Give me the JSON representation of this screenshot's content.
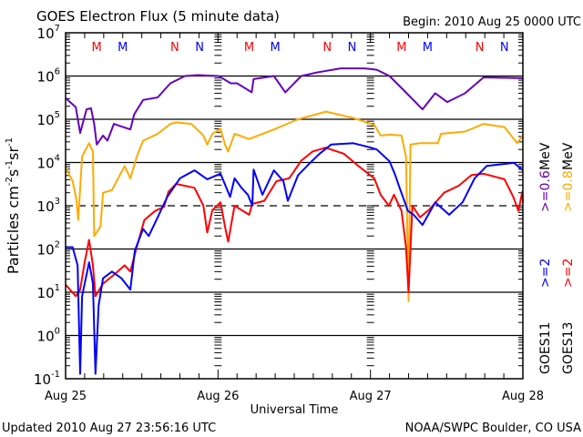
{
  "chart_data": {
    "type": "line",
    "title": "GOES Electron Flux (5 minute data)",
    "begin_label": "Begin: 2010 Aug 25 0000 UTC",
    "xlabel": "Universal Time",
    "ylabel": "Particles cm",
    "ylabel_parts": [
      "Particles cm",
      "-2",
      "s",
      "-1",
      "sr",
      "-1"
    ],
    "x_unit": "hours since 2010 Aug 25 0000 UTC",
    "xlim": [
      0,
      72
    ],
    "x_ticks": [
      {
        "h": 0,
        "label": "Aug 25"
      },
      {
        "h": 24,
        "label": "Aug 26"
      },
      {
        "h": 48,
        "label": "Aug 27"
      },
      {
        "h": 72,
        "label": "Aug 28"
      }
    ],
    "yscale": "log",
    "ylim": [
      0.1,
      10000000
    ],
    "y_ticks": [
      {
        "exp": "7"
      },
      {
        "exp": "6"
      },
      {
        "exp": "5"
      },
      {
        "exp": "4"
      },
      {
        "exp": "3"
      },
      {
        "exp": "2"
      },
      {
        "exp": "1"
      },
      {
        "exp": "0"
      },
      {
        "exp": "-1"
      }
    ],
    "y_tick_base": "10",
    "threshold_line": 1000,
    "markers": [
      {
        "label": "M",
        "color": "#ff0000",
        "h": [
          4.9,
          28.9,
          52.9
        ]
      },
      {
        "label": "M",
        "color": "#0000ff",
        "h": [
          9.0,
          33.0,
          57.0
        ]
      },
      {
        "label": "N",
        "color": "#ff0000",
        "h": [
          17.2,
          41.2,
          65.2
        ]
      },
      {
        "label": "N",
        "color": "#0000ff",
        "h": [
          21.1,
          45.1,
          69.1
        ]
      }
    ],
    "legend": [
      {
        "satellite": "GOES11",
        "low": ">=2",
        "low_color": "#0000ff",
        "high": ">=0.6",
        "high_color": "#6600bb",
        "unit": "MeV"
      },
      {
        "satellite": "GOES13",
        "low": ">=2",
        "low_color": "#ff0000",
        "high": ">=0.8",
        "high_color": "#ffaa00",
        "unit": "MeV"
      }
    ],
    "series": [
      {
        "name": "GOES11 >=0.6 MeV",
        "color": "#6600bb",
        "points": [
          [
            0,
            310000.0
          ],
          [
            1.6,
            190000.0
          ],
          [
            2.3,
            48000.0
          ],
          [
            3.3,
            170000.0
          ],
          [
            4.0,
            180000.0
          ],
          [
            4.5,
            78000.0
          ],
          [
            4.9,
            26000.0
          ],
          [
            5.9,
            42000.0
          ],
          [
            6.6,
            32000.0
          ],
          [
            7.6,
            78000.0
          ],
          [
            10.2,
            58000.0
          ],
          [
            10.8,
            130000.0
          ],
          [
            12.2,
            280000.0
          ],
          [
            14.5,
            320000.0
          ],
          [
            16.5,
            680000.0
          ],
          [
            18.8,
            1000000.0
          ],
          [
            20.8,
            1050000.0
          ],
          [
            24.1,
            1000000.0
          ],
          [
            26.0,
            680000.0
          ],
          [
            27.0,
            680000.0
          ],
          [
            29.3,
            420000.0
          ],
          [
            29.6,
            850000.0
          ],
          [
            32.8,
            1000000.0
          ],
          [
            34.6,
            420000.0
          ],
          [
            37.1,
            1000000.0
          ],
          [
            39.5,
            1200000.0
          ],
          [
            43.3,
            1500000.0
          ],
          [
            47.1,
            1500000.0
          ],
          [
            49.0,
            1400000.0
          ],
          [
            51.0,
            1000000.0
          ],
          [
            53.3,
            460000.0
          ],
          [
            56.2,
            170000.0
          ],
          [
            58.2,
            400000.0
          ],
          [
            60.1,
            250000.0
          ],
          [
            62.9,
            400000.0
          ],
          [
            65.8,
            930000.0
          ],
          [
            72,
            890000.0
          ]
        ]
      },
      {
        "name": "GOES13 >=0.8 MeV",
        "color": "#ffaa00",
        "points": [
          [
            0,
            7600.0
          ],
          [
            1.1,
            3700.0
          ],
          [
            1.7,
            1400.0
          ],
          [
            2.0,
            470
          ],
          [
            2.6,
            13500.0
          ],
          [
            3.0,
            18000.0
          ],
          [
            3.7,
            28000.0
          ],
          [
            4.3,
            18000.0
          ],
          [
            4.5,
            200
          ],
          [
            5.5,
            330
          ],
          [
            5.9,
            2000.0
          ],
          [
            7.3,
            2300.0
          ],
          [
            9.3,
            8300.0
          ],
          [
            10.2,
            4300.0
          ],
          [
            11.2,
            13500.0
          ],
          [
            12.2,
            32000.0
          ],
          [
            14.5,
            46000.0
          ],
          [
            16.5,
            78000.0
          ],
          [
            17.4,
            85000.0
          ],
          [
            19.8,
            78000.0
          ],
          [
            21.7,
            42000.0
          ],
          [
            22.3,
            26000.0
          ],
          [
            23.1,
            46000.0
          ],
          [
            24.4,
            60000.0
          ],
          [
            25.1,
            26000.0
          ],
          [
            25.6,
            18000.0
          ],
          [
            26.6,
            46000.0
          ],
          [
            28.9,
            35000.0
          ],
          [
            32.8,
            58000.0
          ],
          [
            36.6,
            100000.0
          ],
          [
            41.0,
            150000.0
          ],
          [
            45.3,
            107000.0
          ],
          [
            48.6,
            74000.0
          ],
          [
            49.6,
            42000.0
          ],
          [
            51.0,
            44000.0
          ],
          [
            52.9,
            42000.0
          ],
          [
            53.6,
            13500.0
          ],
          [
            54.0,
            6.2
          ],
          [
            54.3,
            26000.0
          ],
          [
            55.8,
            28000.0
          ],
          [
            58.6,
            28000.0
          ],
          [
            59.1,
            46000.0
          ],
          [
            62.9,
            52000.0
          ],
          [
            65.8,
            78000.0
          ],
          [
            69.1,
            66000.0
          ],
          [
            71.1,
            28000.0
          ],
          [
            72,
            42000.0
          ]
        ]
      },
      {
        "name": "GOES13 >=2 MeV",
        "color": "#ff0000",
        "points": [
          [
            0,
            15
          ],
          [
            1.6,
            8.1
          ],
          [
            2.3,
            11.5
          ],
          [
            3.0,
            49
          ],
          [
            3.7,
            162
          ],
          [
            4.3,
            42
          ],
          [
            4.7,
            8.1
          ],
          [
            5.9,
            15.8
          ],
          [
            7.9,
            27.5
          ],
          [
            9.3,
            42
          ],
          [
            10.2,
            30
          ],
          [
            11.2,
            110
          ],
          [
            12.4,
            470
          ],
          [
            14.1,
            760
          ],
          [
            15.5,
            950
          ],
          [
            16.2,
            2100
          ],
          [
            17.4,
            3200
          ],
          [
            20.3,
            2600
          ],
          [
            21.7,
            1000
          ],
          [
            22.3,
            240
          ],
          [
            23.1,
            790
          ],
          [
            24.4,
            1200
          ],
          [
            25.1,
            330
          ],
          [
            25.6,
            148
          ],
          [
            26.6,
            1000
          ],
          [
            28.9,
            620
          ],
          [
            29.4,
            1100
          ],
          [
            31.3,
            1300
          ],
          [
            33.2,
            3700
          ],
          [
            35.2,
            4300
          ],
          [
            37.1,
            11000.0
          ],
          [
            38.9,
            18000.0
          ],
          [
            40.9,
            22000.0
          ],
          [
            43.8,
            16000.0
          ],
          [
            46.1,
            8300
          ],
          [
            48.6,
            4300
          ],
          [
            49.6,
            1800
          ],
          [
            50.9,
            1000
          ],
          [
            51.7,
            1800
          ],
          [
            52.9,
            760
          ],
          [
            53.6,
            110
          ],
          [
            54.0,
            10
          ],
          [
            54.6,
            1000
          ],
          [
            55.8,
            540
          ],
          [
            57.2,
            800
          ],
          [
            59.6,
            2000
          ],
          [
            61.9,
            2900
          ],
          [
            63.9,
            5100
          ],
          [
            65.8,
            5500
          ],
          [
            69.1,
            4100
          ],
          [
            70.5,
            1600
          ],
          [
            71.3,
            760
          ],
          [
            71.9,
            2100
          ],
          [
            72,
            1200
          ]
        ]
      },
      {
        "name": "GOES11 >=2 MeV",
        "color": "#0000ff",
        "points": [
          [
            0,
            110
          ],
          [
            1.1,
            110
          ],
          [
            1.9,
            42
          ],
          [
            2.3,
            0.13
          ],
          [
            2.6,
            8.1
          ],
          [
            3.7,
            49
          ],
          [
            4.3,
            16
          ],
          [
            4.7,
            0.13
          ],
          [
            5.2,
            5.0
          ],
          [
            5.9,
            21
          ],
          [
            7.3,
            30
          ],
          [
            8.8,
            21
          ],
          [
            10.2,
            11.5
          ],
          [
            10.9,
            91
          ],
          [
            12.2,
            290
          ],
          [
            13.1,
            200
          ],
          [
            14.5,
            540
          ],
          [
            16.0,
            1600
          ],
          [
            18.0,
            4300
          ],
          [
            20.3,
            6600
          ],
          [
            22.3,
            4100
          ],
          [
            24.4,
            5500
          ],
          [
            25.9,
            1600
          ],
          [
            26.6,
            4300
          ],
          [
            27.7,
            2600
          ],
          [
            28.7,
            1800
          ],
          [
            29.4,
            1000
          ],
          [
            29.6,
            6900
          ],
          [
            31.0,
            1800
          ],
          [
            32.8,
            6600
          ],
          [
            34.3,
            3700
          ],
          [
            35.0,
            1300
          ],
          [
            36.6,
            5100
          ],
          [
            38.5,
            9800
          ],
          [
            40.0,
            16000.0
          ],
          [
            41.8,
            26000.0
          ],
          [
            45.3,
            28000.0
          ],
          [
            48.1,
            22000.0
          ],
          [
            49.0,
            20000.0
          ],
          [
            51.0,
            10700.0
          ],
          [
            51.9,
            5100
          ],
          [
            52.6,
            2600
          ],
          [
            53.9,
            760
          ],
          [
            54.8,
            620
          ],
          [
            56.2,
            360
          ],
          [
            58.2,
            1200
          ],
          [
            60.4,
            620
          ],
          [
            62.5,
            1200
          ],
          [
            64.4,
            4300
          ],
          [
            66.3,
            8300
          ],
          [
            70.6,
            9800
          ],
          [
            72,
            6600
          ]
        ]
      }
    ]
  },
  "footer": {
    "updated": "Updated 2010 Aug 27 23:56:16 UTC",
    "credit": "NOAA/SWPC Boulder, CO USA"
  }
}
